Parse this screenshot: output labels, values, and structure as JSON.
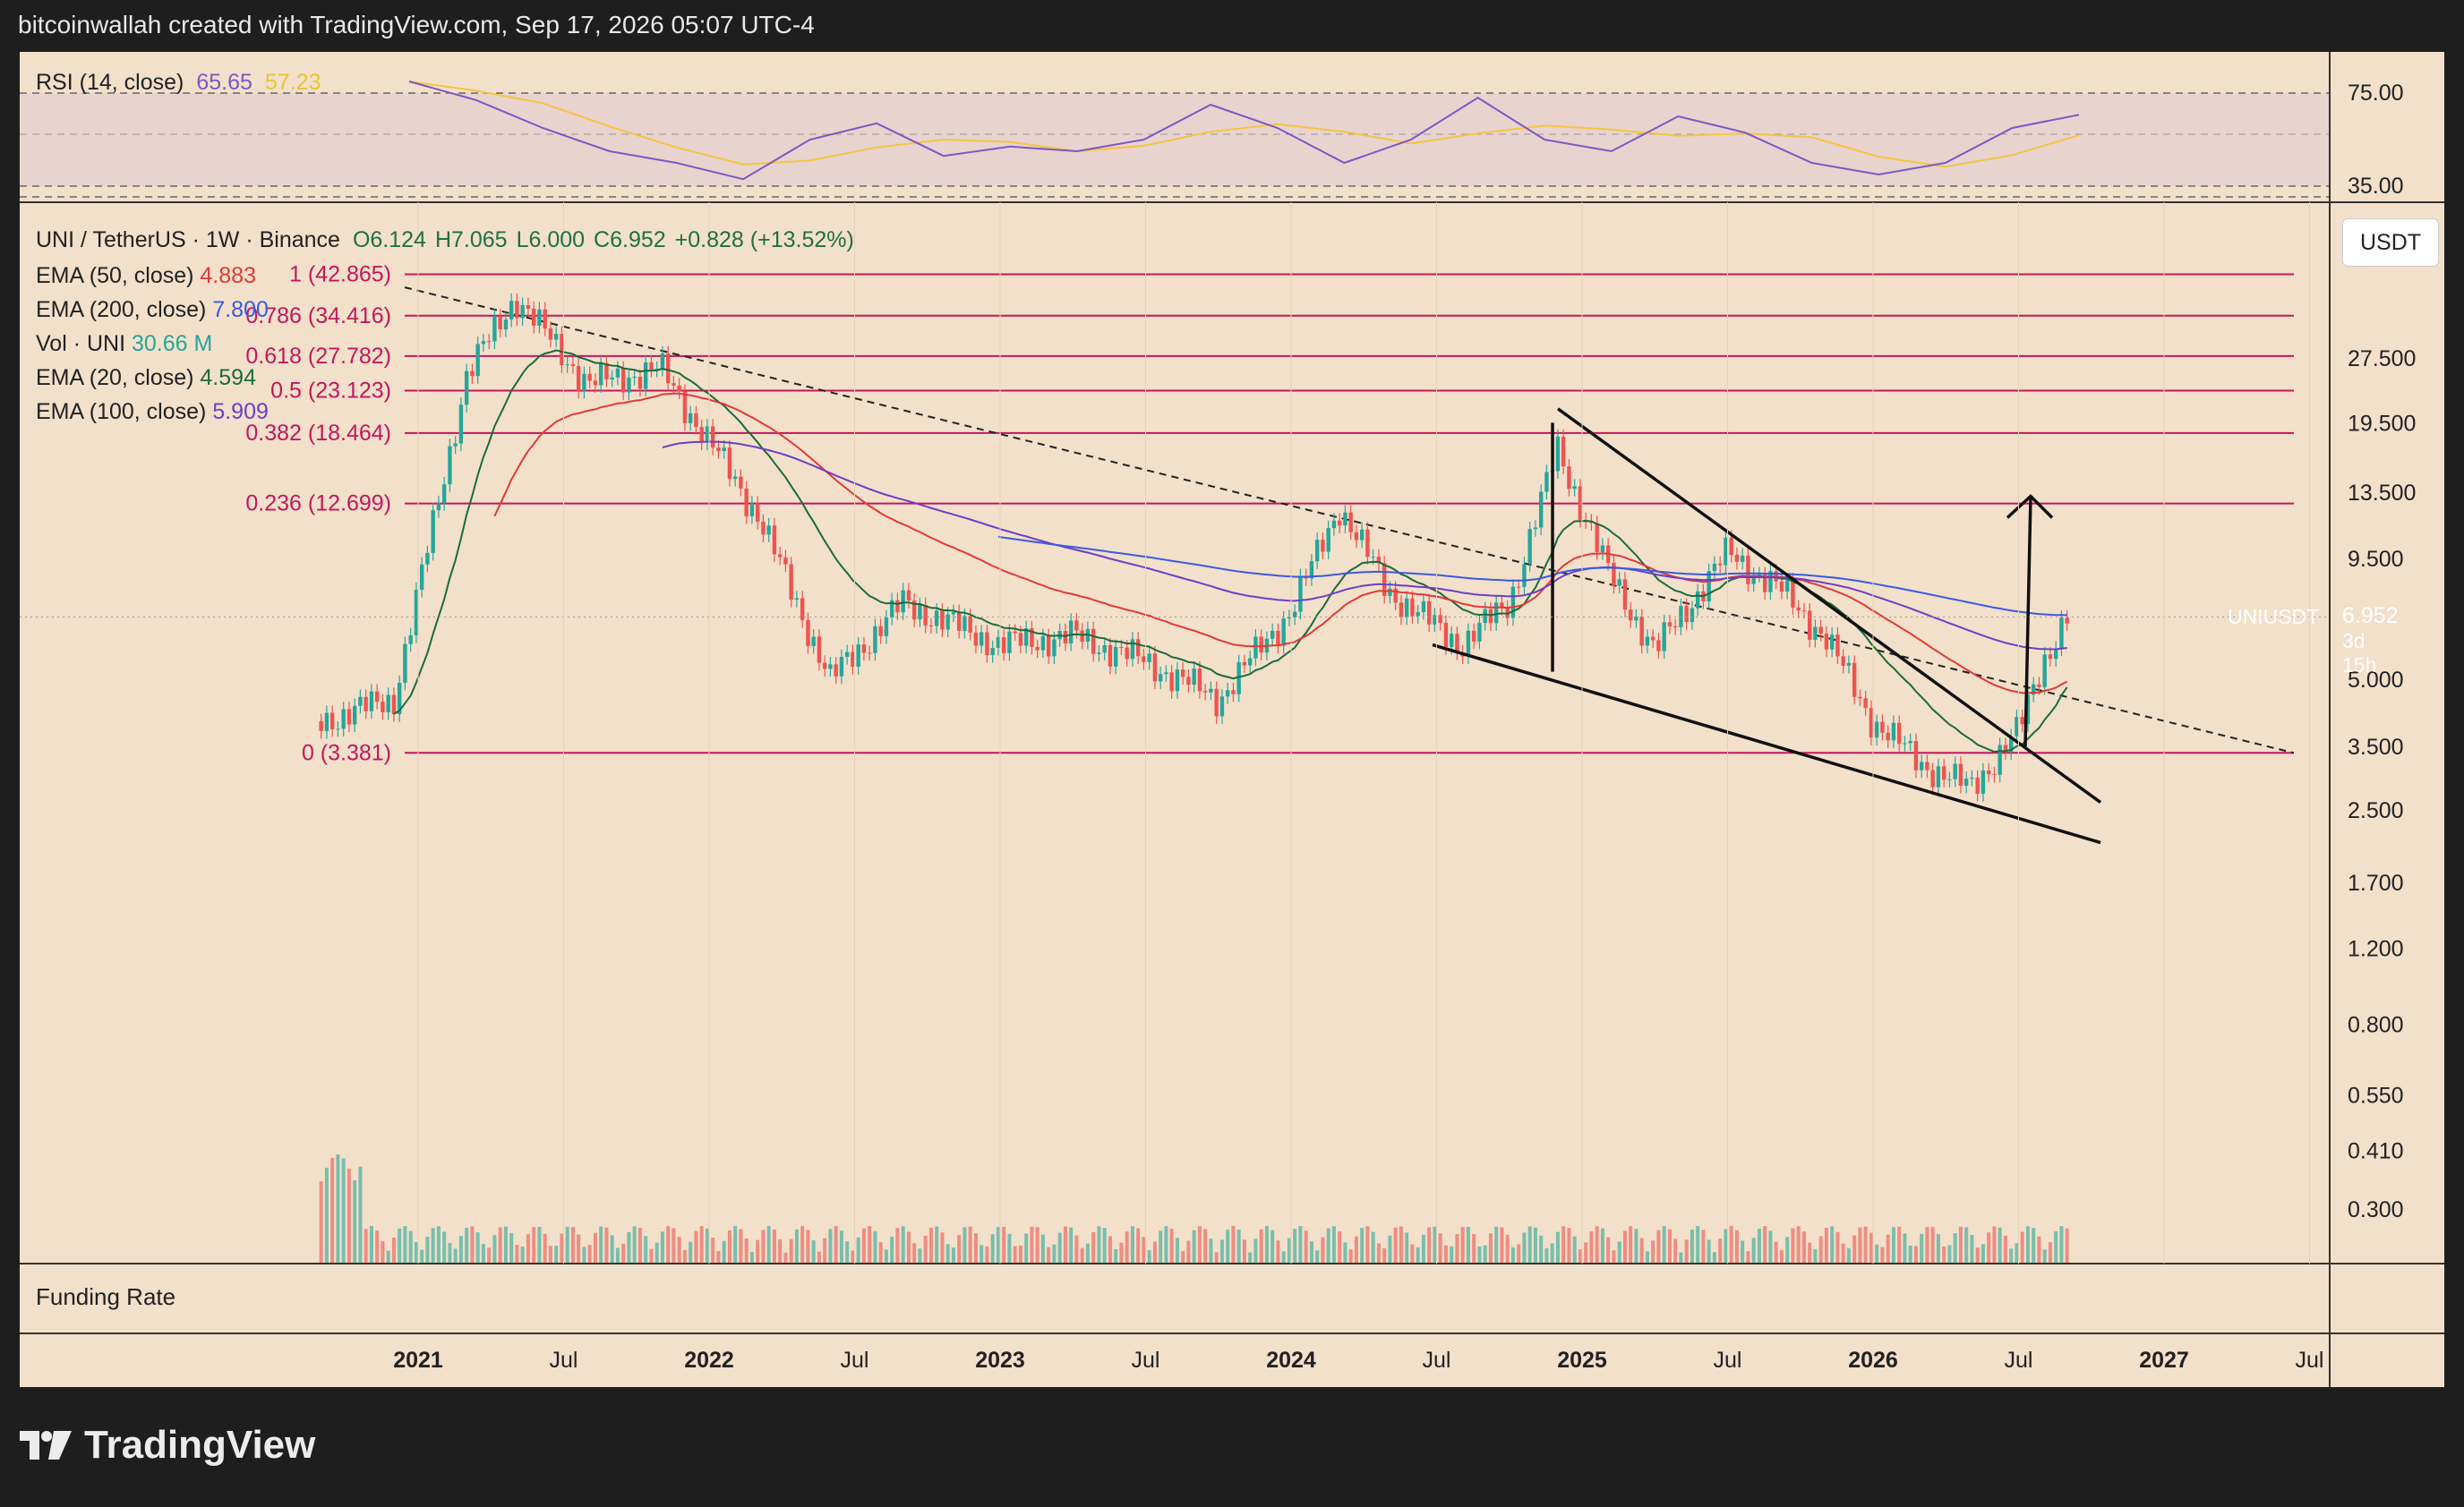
{
  "caption": "bitcoinwallah created with TradingView.com, Sep 17, 2026 05:07 UTC-4",
  "rsi_panel": {
    "label": "RSI (14, close)",
    "value": "65.65",
    "ma_value": "57.23",
    "scale": [
      "75.00",
      "35.00"
    ]
  },
  "main_legend": {
    "symbol": "UNI / TetherUS · 1W · Binance",
    "open": "O6.124",
    "high": "H7.065",
    "low": "L6.000",
    "close": "C6.952",
    "change": "+0.828 (+13.52%)",
    "indicators": [
      {
        "label": "EMA (50, close)",
        "value": "4.883",
        "color": "#e03a3a"
      },
      {
        "label": "EMA (200, close)",
        "value": "7.800",
        "color": "#3a5ae0"
      },
      {
        "label": "Vol · UNI",
        "value": "30.66 M",
        "color": "#26a69a"
      },
      {
        "label": "EMA (20, close)",
        "value": "4.594",
        "color": "#1a6b3c"
      },
      {
        "label": "EMA (100, close)",
        "value": "5.909",
        "color": "#6c3fc4"
      }
    ]
  },
  "currency_label": "USDT",
  "price_tag": {
    "symbol": "UNIUSDT",
    "price": "6.952",
    "countdown": "3d 15h"
  },
  "funding_label": "Funding Rate",
  "brand": "TradingView",
  "colors": {
    "background": "#f2e0ca",
    "up_candle": "#26a69a",
    "down_candle": "#ef5350",
    "fib_line": "#c2185b",
    "rsi_line": "#7e57c2",
    "rsi_ma": "#f5c542"
  },
  "chart_data": {
    "type": "line",
    "title": "UNI / TetherUS · 1W · Binance",
    "y_scale": "log",
    "y_ticks": [
      "27.500",
      "19.500",
      "13.500",
      "9.500",
      "5.000",
      "3.500",
      "2.500",
      "1.700",
      "1.200",
      "0.800",
      "0.550",
      "0.410",
      "0.300"
    ],
    "x_ticks": [
      "2021",
      "Jul",
      "2022",
      "Jul",
      "2023",
      "Jul",
      "2024",
      "Jul",
      "2025",
      "Jul",
      "2026",
      "Jul",
      "2027",
      "Jul"
    ],
    "fib_levels": [
      {
        "label": "1 (42.865)",
        "value": 42.865
      },
      {
        "label": "0.786 (34.416)",
        "value": 34.416
      },
      {
        "label": "0.618 (27.782)",
        "value": 27.782
      },
      {
        "label": "0.5 (23.123)",
        "value": 23.123
      },
      {
        "label": "0.382 (18.464)",
        "value": 18.464
      },
      {
        "label": "0.236 (12.699)",
        "value": 12.699
      },
      {
        "label": "0 (3.381)",
        "value": 3.381
      }
    ],
    "series": [
      {
        "name": "UNI / TetherUS",
        "x": [
          "2020-09",
          "2020-12",
          "2021-03",
          "2021-05",
          "2021-08",
          "2021-11",
          "2022-03",
          "2022-06",
          "2022-09",
          "2023-01",
          "2023-04",
          "2023-07",
          "2023-10",
          "2024-01",
          "2024-03",
          "2024-05",
          "2024-08",
          "2024-10",
          "2024-12",
          "2025-02",
          "2025-04",
          "2025-07",
          "2025-09",
          "2025-11",
          "2026-01",
          "2026-03",
          "2026-05",
          "2026-07",
          "2026-08",
          "2026-09"
        ],
        "values": [
          4.0,
          4.5,
          25,
          38,
          24,
          26,
          12,
          5.0,
          7.5,
          6.0,
          6.3,
          5.5,
          4.5,
          7.2,
          12.5,
          8.0,
          6.0,
          7.5,
          17,
          9.0,
          5.8,
          9.8,
          8.2,
          6.3,
          4.0,
          3.2,
          2.8,
          3.8,
          5.5,
          6.952
        ]
      },
      {
        "name": "EMA (20, close)",
        "values": [
          4.6
        ]
      },
      {
        "name": "EMA (50, close)",
        "values": [
          4.883
        ]
      },
      {
        "name": "EMA (100, close)",
        "values": [
          5.909
        ]
      },
      {
        "name": "EMA (200, close)",
        "values": [
          7.8
        ]
      },
      {
        "name": "Vol · UNI",
        "values": [
          30.66
        ]
      }
    ],
    "rsi": {
      "values": [
        80,
        72,
        60,
        50,
        45,
        38,
        55,
        62,
        48,
        52,
        50,
        55,
        70,
        60,
        45,
        55,
        73,
        55,
        50,
        65,
        58,
        45,
        40,
        45,
        60,
        65.65
      ]
    }
  }
}
